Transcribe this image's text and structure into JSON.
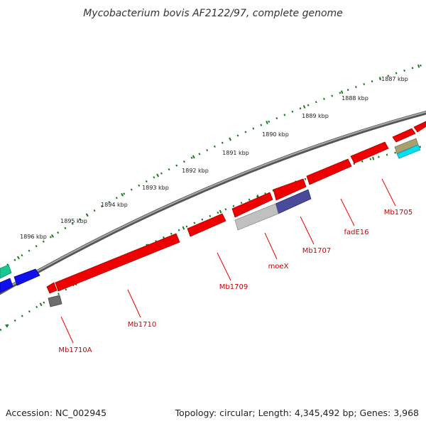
{
  "title": "Mycobacterium bovis AF2122/97, complete genome",
  "footer": {
    "accession": "Accession: NC_002945",
    "summary": "Topology: circular; Length: 4,345,492 bp; Genes: 3,968"
  },
  "ruler_labels": [
    "1887 kbp",
    "1888 kbp",
    "1889 kbp",
    "1890 kbp",
    "1891 kbp",
    "1892 kbp",
    "1893 kbp",
    "1894 kbp",
    "1895 kbp",
    "1896 kbp"
  ],
  "gene_labels": [
    "Mb1705",
    "fadE16",
    "Mb1707",
    "moeX",
    "Mb1709",
    "Mb1710",
    "Mb1710A"
  ],
  "colors": {
    "backbone": "#777777",
    "ruler": "#1e7a1e",
    "gene_red": "#ee0000",
    "gene_blue": "#1010ee",
    "gene_teal": "#18c890",
    "gene_navy": "#4a4a9a",
    "gene_grey": "#b8b8b8",
    "gene_dark": "#777777",
    "gene_khaki": "#a8a070",
    "gene_cyan": "#00e0f0",
    "label_red": "#cc0000"
  }
}
